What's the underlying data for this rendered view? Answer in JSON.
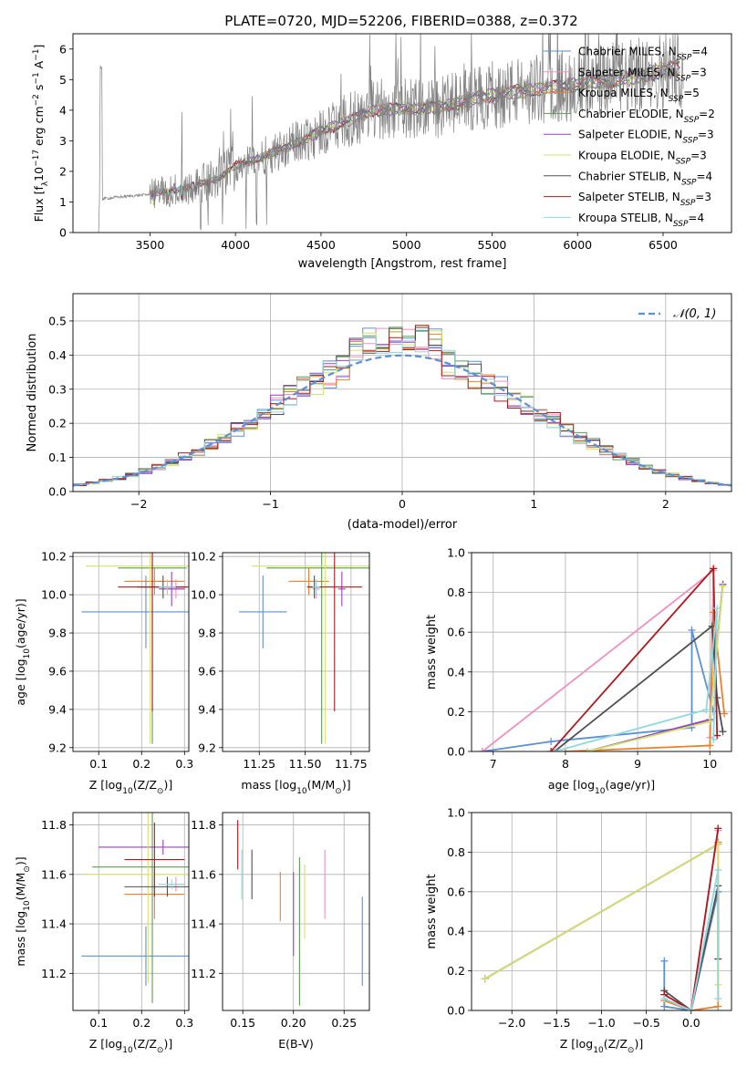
{
  "title": "PLATE=0720, MJD=52206, FIBERID=0388, z=0.372",
  "colors": {
    "chabrier_miles": "#5b8fd6",
    "salpeter_miles": "#f08fc0",
    "kroupa_miles": "#ee7f2d",
    "chabrier_elodie": "#5f9a55",
    "salpeter_elodie": "#9b3fc6",
    "kroupa_elodie": "#d4e36b",
    "chabrier_stelib": "#505050",
    "salpeter_stelib": "#b0181e",
    "kroupa_stelib": "#8fd8e0",
    "data": "#808080",
    "gaussian": "#5b8fd6"
  },
  "legend_sup_label": "SSP",
  "chart_data": [
    {
      "id": "spectrum",
      "type": "line",
      "xlabel": "wavelength [Angstrom, rest frame]",
      "ylabel": "Flux [f",
      "ylabel_sub": "λ",
      "ylabel_mid": "10",
      "ylabel_exp1": "−17",
      "ylabel_mid2": " erg cm",
      "ylabel_exp2": "−2",
      "ylabel_mid3": " s",
      "ylabel_exp3": "−1",
      "ylabel_mid4": " A",
      "ylabel_exp4": "−1",
      "ylabel_end": "]",
      "xlim": [
        3050,
        6900
      ],
      "ylim": [
        0,
        6.5
      ],
      "xticks": [
        "3500",
        "4000",
        "4500",
        "5000",
        "5500",
        "6000",
        "6500"
      ],
      "xtick_values": [
        3500,
        4000,
        4500,
        5000,
        5500,
        6000,
        6500
      ],
      "yticks": [
        "0",
        "1",
        "2",
        "3",
        "4",
        "5",
        "6"
      ],
      "ytick_values": [
        0,
        1,
        2,
        3,
        4,
        5,
        6
      ],
      "legend_position": "top-right",
      "model_continuum": [
        [
          3220,
          1.1
        ],
        [
          3300,
          1.15
        ],
        [
          3500,
          1.25
        ],
        [
          3700,
          1.45
        ],
        [
          3900,
          1.75
        ],
        [
          4000,
          2.2
        ],
        [
          4100,
          2.35
        ],
        [
          4300,
          2.8
        ],
        [
          4500,
          3.3
        ],
        [
          4700,
          3.75
        ],
        [
          4800,
          4.0
        ],
        [
          5000,
          4.05
        ],
        [
          5200,
          4.1
        ],
        [
          5500,
          4.5
        ],
        [
          5800,
          4.7
        ],
        [
          6000,
          4.85
        ],
        [
          6300,
          5.05
        ],
        [
          6500,
          5.3
        ],
        [
          6600,
          5.4
        ]
      ],
      "data_start": 3200,
      "data_end": 6620,
      "series": [
        {
          "name": "Chabrier MILES, N",
          "n": "4",
          "key": "chabrier_miles"
        },
        {
          "name": "Salpeter MILES, N",
          "n": "3",
          "key": "salpeter_miles"
        },
        {
          "name": "Kroupa MILES, N",
          "n": "5",
          "key": "kroupa_miles"
        },
        {
          "name": "Chabrier ELODIE, N",
          "n": "2",
          "key": "chabrier_elodie"
        },
        {
          "name": "Salpeter ELODIE, N",
          "n": "3",
          "key": "salpeter_elodie"
        },
        {
          "name": "Kroupa ELODIE, N",
          "n": "3",
          "key": "kroupa_elodie"
        },
        {
          "name": "Chabrier STELIB, N",
          "n": "4",
          "key": "chabrier_stelib"
        },
        {
          "name": "Salpeter STELIB, N",
          "n": "3",
          "key": "salpeter_stelib"
        },
        {
          "name": "Kroupa STELIB, N",
          "n": "4",
          "key": "kroupa_stelib"
        }
      ]
    },
    {
      "id": "residuals",
      "type": "line",
      "xlabel": "(data-model)/error",
      "ylabel": "Normed distribution",
      "xlim": [
        -2.5,
        2.5
      ],
      "ylim": [
        0,
        0.58
      ],
      "xticks": [
        "−2",
        "−1",
        "0",
        "1",
        "2"
      ],
      "xtick_values": [
        -2,
        -1,
        0,
        1,
        2
      ],
      "yticks": [
        "0.0",
        "0.1",
        "0.2",
        "0.3",
        "0.4",
        "0.5"
      ],
      "ytick_values": [
        0,
        0.1,
        0.2,
        0.3,
        0.4,
        0.5
      ],
      "grid": true,
      "legend_position": "top-right",
      "gaussian_label": "𝒩(0, 1)",
      "bin_width": 0.1
    },
    {
      "id": "z_age",
      "type": "scatter",
      "xlabel": "Z [log",
      "xlabel_sub": "10",
      "xlabel_end": "(Z/Z",
      "xlabel_sub2": "⊙",
      "xlabel_close": ")]",
      "ylabel": "age  [log",
      "ylabel_sub": "10",
      "ylabel_end": "(age/yr)]",
      "xlim": [
        0.04,
        0.31
      ],
      "ylim": [
        9.18,
        10.22
      ],
      "xticks": [
        "0.1",
        "0.2",
        "0.3"
      ],
      "xtick_values": [
        0.1,
        0.2,
        0.3
      ],
      "yticks": [
        "9.2",
        "9.4",
        "9.6",
        "9.8",
        "10.0",
        "10.2"
      ],
      "ytick_values": [
        9.2,
        9.4,
        9.6,
        9.8,
        10.0,
        10.2
      ],
      "grid": true,
      "points": [
        {
          "key": "chabrier_miles",
          "x": 0.21,
          "xerr": 0.15,
          "y": 9.91,
          "yerr": 0.19
        },
        {
          "key": "salpeter_miles",
          "x": 0.28,
          "xerr": 0.02,
          "y": 10.03,
          "yerr": 0.05
        },
        {
          "key": "kroupa_miles",
          "x": 0.23,
          "xerr": 0.07,
          "y": 10.07,
          "yerr": 0.07
        },
        {
          "key": "chabrier_elodie",
          "x": 0.225,
          "xerr": 0.08,
          "y": 10.14,
          "yerr": 0.92
        },
        {
          "key": "salpeter_elodie",
          "x": 0.27,
          "xerr": 0.03,
          "y": 10.03,
          "yerr": 0.09
        },
        {
          "key": "kroupa_elodie",
          "x": 0.22,
          "xerr": 0.15,
          "y": 10.15,
          "yerr": 0.93
        },
        {
          "key": "chabrier_stelib",
          "x": 0.25,
          "xerr": 0.06,
          "y": 10.04,
          "yerr": 0.06
        },
        {
          "key": "salpeter_stelib",
          "x": 0.225,
          "xerr": 0.08,
          "y": 10.04,
          "yerr": 0.65
        },
        {
          "key": "kroupa_stelib",
          "x": 0.26,
          "xerr": 0.02,
          "y": 10.04,
          "yerr": 0.04
        }
      ]
    },
    {
      "id": "mass_age",
      "type": "scatter",
      "xlabel": "mass [log",
      "xlabel_sub": "10",
      "xlabel_end": "(M/M",
      "xlabel_sub2": "⊙",
      "xlabel_close": ")]",
      "xlim": [
        11.05,
        11.85
      ],
      "ylim": [
        9.18,
        10.22
      ],
      "xticks": [
        "11.25",
        "11.50",
        "11.75"
      ],
      "xtick_values": [
        11.25,
        11.5,
        11.75
      ],
      "yticks": [
        "9.2",
        "9.4",
        "9.6",
        "9.8",
        "10.0",
        "10.2"
      ],
      "ytick_values": [
        9.2,
        9.4,
        9.6,
        9.8,
        10.0,
        10.2
      ],
      "grid": true,
      "points": [
        {
          "key": "chabrier_miles",
          "x": 11.27,
          "xerr": 0.13,
          "y": 9.91,
          "yerr": 0.19
        },
        {
          "key": "salpeter_miles",
          "x": 11.56,
          "xerr": 0.02,
          "y": 10.03,
          "yerr": 0.05
        },
        {
          "key": "kroupa_miles",
          "x": 11.52,
          "xerr": 0.11,
          "y": 10.07,
          "yerr": 0.07
        },
        {
          "key": "chabrier_elodie",
          "x": 11.59,
          "xerr": 0.3,
          "y": 10.14,
          "yerr": 0.92
        },
        {
          "key": "salpeter_elodie",
          "x": 11.7,
          "xerr": 0.02,
          "y": 10.03,
          "yerr": 0.09
        },
        {
          "key": "kroupa_elodie",
          "x": 11.61,
          "xerr": 0.4,
          "y": 10.15,
          "yerr": 0.93
        },
        {
          "key": "chabrier_stelib",
          "x": 11.55,
          "xerr": 0.03,
          "y": 10.04,
          "yerr": 0.06
        },
        {
          "key": "salpeter_stelib",
          "x": 11.66,
          "xerr": 0.15,
          "y": 10.04,
          "yerr": 0.65
        },
        {
          "key": "kroupa_stelib",
          "x": 11.56,
          "xerr": 0.02,
          "y": 10.04,
          "yerr": 0.04
        }
      ]
    },
    {
      "id": "age_weight",
      "type": "line",
      "xlabel": "age  [log",
      "xlabel_sub": "10",
      "xlabel_end": "(age/yr)]",
      "ylabel": "mass weight",
      "xlim": [
        6.7,
        10.3
      ],
      "ylim": [
        0,
        1
      ],
      "xticks": [
        "7",
        "8",
        "9",
        "10"
      ],
      "xtick_values": [
        7,
        8,
        9,
        10
      ],
      "yticks": [
        "0.0",
        "0.2",
        "0.4",
        "0.6",
        "0.8",
        "1.0"
      ],
      "ytick_values": [
        0,
        0.2,
        0.4,
        0.6,
        0.8,
        1.0
      ],
      "grid": true,
      "lines": [
        {
          "key": "chabrier_miles",
          "pts": [
            [
              6.85,
              0.0
            ],
            [
              7.8,
              0.05
            ],
            [
              9.75,
              0.12
            ],
            [
              9.75,
              0.61
            ],
            [
              10.05,
              0.2
            ]
          ]
        },
        {
          "key": "salpeter_miles",
          "pts": [
            [
              6.85,
              0.0
            ],
            [
              10.05,
              0.91
            ],
            [
              10.0,
              0.07
            ]
          ]
        },
        {
          "key": "kroupa_miles",
          "pts": [
            [
              8.0,
              0.0
            ],
            [
              10.0,
              0.03
            ],
            [
              10.05,
              0.7
            ],
            [
              10.2,
              0.19
            ]
          ]
        },
        {
          "key": "chabrier_elodie",
          "pts": [
            [
              8.3,
              0.0
            ],
            [
              10.0,
              0.16
            ],
            [
              10.18,
              0.84
            ]
          ]
        },
        {
          "key": "salpeter_elodie",
          "pts": [
            [
              8.3,
              0.0
            ],
            [
              10.0,
              0.16
            ],
            [
              10.18,
              0.84
            ]
          ]
        },
        {
          "key": "kroupa_elodie",
          "pts": [
            [
              8.3,
              0.0
            ],
            [
              10.0,
              0.15
            ],
            [
              10.18,
              0.83
            ]
          ]
        },
        {
          "key": "chabrier_stelib",
          "pts": [
            [
              7.85,
              0.0
            ],
            [
              10.03,
              0.63
            ],
            [
              10.1,
              0.27
            ],
            [
              10.18,
              0.1
            ]
          ]
        },
        {
          "key": "salpeter_stelib",
          "pts": [
            [
              7.8,
              0.0
            ],
            [
              10.05,
              0.92
            ],
            [
              10.1,
              0.08
            ]
          ]
        },
        {
          "key": "kroupa_stelib",
          "pts": [
            [
              7.85,
              0.0
            ],
            [
              9.95,
              0.21
            ],
            [
              10.1,
              0.72
            ],
            [
              10.05,
              0.06
            ]
          ]
        }
      ]
    },
    {
      "id": "z_mass",
      "type": "scatter",
      "xlabel": "Z [log",
      "xlabel_sub": "10",
      "xlabel_end": "(Z/Z",
      "xlabel_sub2": "⊙",
      "xlabel_close": ")]",
      "ylabel": "mass [log",
      "ylabel_sub": "10",
      "ylabel_end": "(M/M",
      "ylabel_sub2": "⊙",
      "ylabel_close": ")]",
      "xlim": [
        0.04,
        0.31
      ],
      "ylim": [
        11.05,
        11.85
      ],
      "xticks": [
        "0.1",
        "0.2",
        "0.3"
      ],
      "xtick_values": [
        0.1,
        0.2,
        0.3
      ],
      "yticks": [
        "11.2",
        "11.4",
        "11.6",
        "11.8"
      ],
      "ytick_values": [
        11.2,
        11.4,
        11.6,
        11.8
      ],
      "grid": true,
      "points": [
        {
          "key": "chabrier_miles",
          "x": 0.21,
          "xerr": 0.15,
          "y": 11.27,
          "yerr": 0.12
        },
        {
          "key": "salpeter_miles",
          "x": 0.28,
          "xerr": 0.02,
          "y": 11.56,
          "yerr": 0.03
        },
        {
          "key": "kroupa_miles",
          "x": 0.23,
          "xerr": 0.07,
          "y": 11.52,
          "yerr": 0.1
        },
        {
          "key": "chabrier_elodie",
          "x": 0.225,
          "xerr": 0.14,
          "y": 11.63,
          "yerr": 0.55
        },
        {
          "key": "salpeter_elodie",
          "x": 0.25,
          "xerr": 0.15,
          "y": 11.71,
          "yerr": 0.03
        },
        {
          "key": "kroupa_elodie",
          "x": 0.215,
          "xerr": 0.15,
          "y": 11.6,
          "yerr": 0.44
        },
        {
          "key": "chabrier_stelib",
          "x": 0.26,
          "xerr": 0.1,
          "y": 11.55,
          "yerr": 0.04
        },
        {
          "key": "salpeter_stelib",
          "x": 0.23,
          "xerr": 0.07,
          "y": 11.66,
          "yerr": 0.15
        },
        {
          "key": "kroupa_stelib",
          "x": 0.27,
          "xerr": 0.03,
          "y": 11.56,
          "yerr": 0.02
        }
      ]
    },
    {
      "id": "ebv_mass",
      "type": "scatter",
      "xlabel": "E(B-V)",
      "xlim": [
        0.13,
        0.275
      ],
      "ylim": [
        11.05,
        11.85
      ],
      "xticks": [
        "0.15",
        "0.20",
        "0.25"
      ],
      "xtick_values": [
        0.15,
        0.2,
        0.25
      ],
      "yticks": [
        "11.2",
        "11.4",
        "11.6",
        "11.8"
      ],
      "ytick_values": [
        11.2,
        11.4,
        11.6,
        11.8
      ],
      "grid": true,
      "points": [
        {
          "key": "chabrier_miles",
          "x": 0.268,
          "y": 11.33,
          "yerr": 0.18
        },
        {
          "key": "salpeter_miles",
          "x": 0.231,
          "y": 11.56,
          "yerr": 0.14
        },
        {
          "key": "kroupa_miles",
          "x": 0.187,
          "y": 11.51,
          "yerr": 0.1
        },
        {
          "key": "chabrier_elodie",
          "x": 0.206,
          "y": 11.37,
          "yerr": 0.3
        },
        {
          "key": "salpeter_elodie",
          "x": 0.2,
          "y": 11.44,
          "yerr": 0.17
        },
        {
          "key": "kroupa_elodie",
          "x": 0.211,
          "y": 11.49,
          "yerr": 0.15
        },
        {
          "key": "chabrier_stelib",
          "x": 0.159,
          "y": 11.6,
          "yerr": 0.1
        },
        {
          "key": "salpeter_stelib",
          "x": 0.145,
          "y": 11.72,
          "yerr": 0.1
        },
        {
          "key": "kroupa_stelib",
          "x": 0.149,
          "y": 11.6,
          "yerr": 0.1
        }
      ]
    },
    {
      "id": "z_weight",
      "type": "line",
      "xlabel": "Z [log",
      "xlabel_sub": "10",
      "xlabel_end": "(Z/Z",
      "xlabel_sub2": "⊙",
      "xlabel_close": ")]",
      "ylabel": "mass weight",
      "xlim": [
        -2.45,
        0.45
      ],
      "ylim": [
        0,
        1
      ],
      "xticks": [
        "−2.0",
        "−1.5",
        "−1.0",
        "−0.5",
        "0.0"
      ],
      "xtick_values": [
        -2.0,
        -1.5,
        -1.0,
        -0.5,
        0.0
      ],
      "yticks": [
        "0.0",
        "0.2",
        "0.4",
        "0.6",
        "0.8",
        "1.0"
      ],
      "ytick_values": [
        0,
        0.2,
        0.4,
        0.6,
        0.8,
        1.0
      ],
      "grid": true,
      "lines": [
        {
          "key": "chabrier_miles",
          "pts": [
            [
              -0.3,
              0.25
            ],
            [
              -0.3,
              0.02
            ],
            [
              0.0,
              0.0
            ],
            [
              0.3,
              0.6
            ]
          ]
        },
        {
          "key": "salpeter_miles",
          "pts": [
            [
              -0.3,
              0.08
            ],
            [
              0.0,
              0.0
            ],
            [
              0.3,
              0.91
            ]
          ]
        },
        {
          "key": "kroupa_miles",
          "pts": [
            [
              -0.3,
              0.05
            ],
            [
              0.0,
              0.0
            ],
            [
              0.3,
              0.02
            ],
            [
              0.3,
              0.85
            ]
          ]
        },
        {
          "key": "chabrier_elodie",
          "pts": [
            [
              -2.3,
              0.16
            ],
            [
              0.3,
              0.84
            ]
          ]
        },
        {
          "key": "salpeter_elodie",
          "pts": [
            [
              -2.3,
              0.16
            ],
            [
              0.3,
              0.84
            ]
          ]
        },
        {
          "key": "kroupa_elodie",
          "pts": [
            [
              -2.3,
              0.16
            ],
            [
              0.3,
              0.84
            ],
            [
              0.3,
              0.13
            ]
          ]
        },
        {
          "key": "chabrier_stelib",
          "pts": [
            [
              -0.3,
              0.1
            ],
            [
              0.0,
              0.0
            ],
            [
              0.3,
              0.63
            ],
            [
              0.3,
              0.26
            ]
          ]
        },
        {
          "key": "salpeter_stelib",
          "pts": [
            [
              -0.3,
              0.08
            ],
            [
              0.0,
              0.0
            ],
            [
              0.3,
              0.92
            ]
          ]
        },
        {
          "key": "kroupa_stelib",
          "pts": [
            [
              -0.3,
              0.06
            ],
            [
              0.0,
              0.0
            ],
            [
              0.3,
              0.71
            ],
            [
              0.3,
              0.06
            ]
          ]
        }
      ]
    }
  ]
}
